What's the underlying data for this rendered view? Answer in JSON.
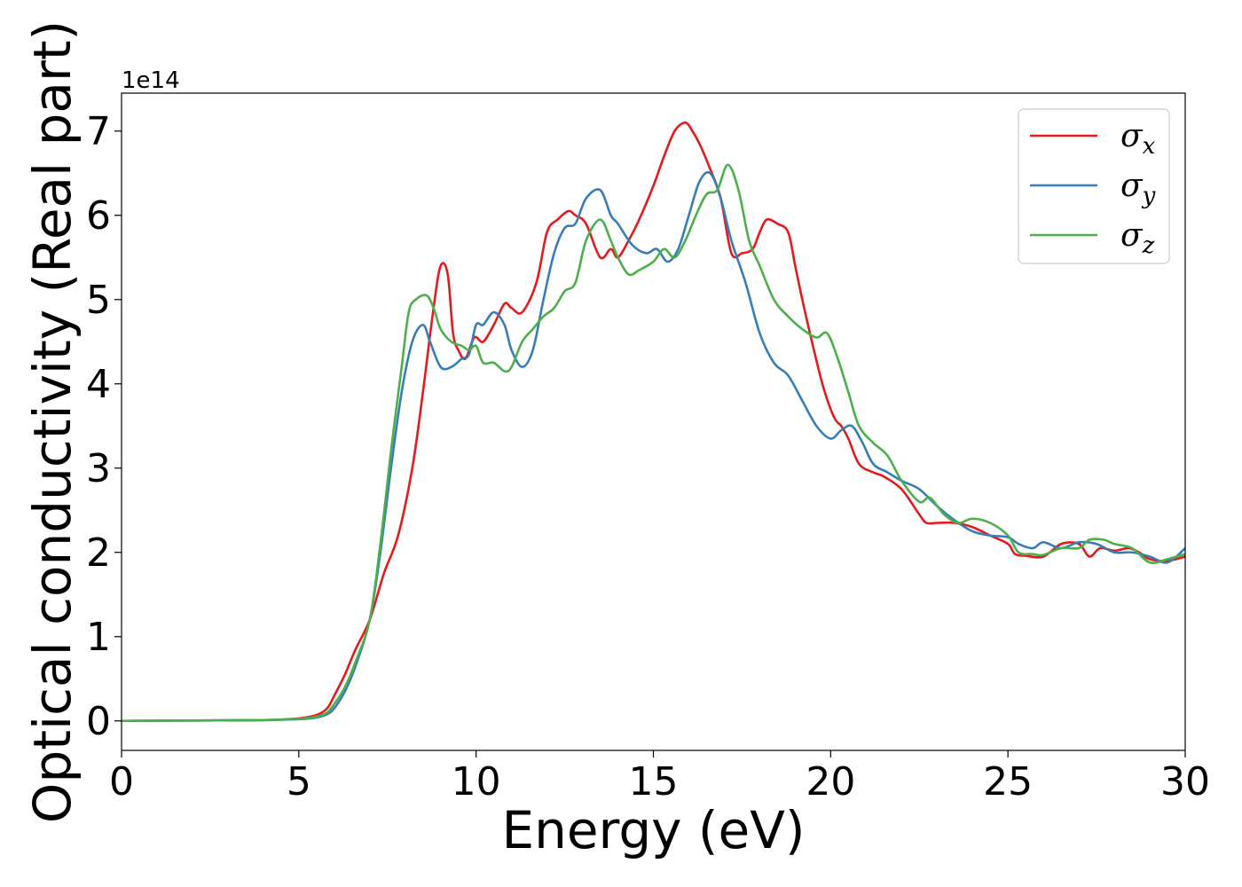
{
  "chart_data": {
    "type": "line",
    "title": "",
    "xlabel": "Energy (eV)",
    "ylabel": "Optical conductivity (Real part)",
    "y_offset_label": "1e14",
    "xlim": [
      0,
      30
    ],
    "ylim": [
      -0.35,
      7.45
    ],
    "xticks": [
      0,
      5,
      10,
      15,
      20,
      25,
      30
    ],
    "yticks": [
      0,
      1,
      2,
      3,
      4,
      5,
      6,
      7
    ],
    "grid": false,
    "legend_position": "top-right",
    "series": [
      {
        "name": "σ",
        "subscript": "x",
        "color": "#e41a1c",
        "x": [
          0,
          2,
          4,
          5,
          5.5,
          5.8,
          6.0,
          6.3,
          6.6,
          7.0,
          7.4,
          7.8,
          8.2,
          8.5,
          8.8,
          9.0,
          9.2,
          9.35,
          9.5,
          9.7,
          9.95,
          10.2,
          10.5,
          10.8,
          11.0,
          11.3,
          11.7,
          12.0,
          12.3,
          12.6,
          12.8,
          13.1,
          13.5,
          13.8,
          14.0,
          14.3,
          14.6,
          15.0,
          15.3,
          15.6,
          15.9,
          16.1,
          16.3,
          16.6,
          16.9,
          17.2,
          17.5,
          17.8,
          18.0,
          18.2,
          18.5,
          18.8,
          19.0,
          19.2,
          19.5,
          19.8,
          20.1,
          20.3,
          20.5,
          20.8,
          21.2,
          21.5,
          22.0,
          22.5,
          22.7,
          23.0,
          23.5,
          24.0,
          24.5,
          25.0,
          25.2,
          25.5,
          26.0,
          26.5,
          27.0,
          27.3,
          27.6,
          28.0,
          28.4,
          28.7,
          29.0,
          29.5,
          30.0
        ],
        "values": [
          0,
          0.005,
          0.01,
          0.03,
          0.07,
          0.15,
          0.3,
          0.55,
          0.85,
          1.2,
          1.75,
          2.2,
          3.0,
          3.9,
          4.9,
          5.4,
          5.3,
          4.6,
          4.4,
          4.3,
          4.55,
          4.5,
          4.7,
          4.95,
          4.9,
          4.85,
          5.2,
          5.8,
          5.95,
          6.05,
          6.0,
          5.9,
          5.5,
          5.6,
          5.5,
          5.7,
          5.95,
          6.35,
          6.7,
          7.0,
          7.1,
          7.0,
          6.85,
          6.55,
          6.2,
          5.55,
          5.55,
          5.6,
          5.8,
          5.95,
          5.9,
          5.8,
          5.4,
          5.0,
          4.45,
          3.95,
          3.6,
          3.5,
          3.35,
          3.05,
          2.95,
          2.9,
          2.75,
          2.45,
          2.35,
          2.35,
          2.35,
          2.3,
          2.2,
          2.1,
          1.98,
          1.96,
          1.95,
          2.1,
          2.1,
          1.95,
          2.05,
          2.02,
          2.05,
          2.0,
          1.92,
          1.9,
          1.95
        ]
      },
      {
        "name": "σ",
        "subscript": "y",
        "color": "#377eb8",
        "x": [
          0,
          2,
          4,
          5,
          5.5,
          5.8,
          6.0,
          6.3,
          6.6,
          7.0,
          7.3,
          7.6,
          7.9,
          8.2,
          8.5,
          8.7,
          9.0,
          9.3,
          9.6,
          9.8,
          10.0,
          10.2,
          10.5,
          10.8,
          11.0,
          11.3,
          11.6,
          11.9,
          12.2,
          12.5,
          12.8,
          13.1,
          13.5,
          13.8,
          14.0,
          14.4,
          14.8,
          15.1,
          15.4,
          15.7,
          16.0,
          16.3,
          16.6,
          16.9,
          17.2,
          17.6,
          18.0,
          18.4,
          18.8,
          19.2,
          19.6,
          20.0,
          20.3,
          20.6,
          20.9,
          21.2,
          21.6,
          22.0,
          22.5,
          23.0,
          23.5,
          24.0,
          24.5,
          25.0,
          25.3,
          25.7,
          26.0,
          26.5,
          27.0,
          27.5,
          28.0,
          28.5,
          29.0,
          29.5,
          30.0
        ],
        "values": [
          0,
          0.005,
          0.01,
          0.02,
          0.04,
          0.08,
          0.15,
          0.35,
          0.65,
          1.2,
          2.0,
          3.0,
          3.9,
          4.5,
          4.7,
          4.5,
          4.2,
          4.2,
          4.3,
          4.35,
          4.7,
          4.7,
          4.85,
          4.7,
          4.4,
          4.2,
          4.4,
          5.0,
          5.55,
          5.85,
          5.9,
          6.2,
          6.3,
          6.0,
          5.9,
          5.65,
          5.55,
          5.6,
          5.45,
          5.6,
          6.0,
          6.4,
          6.5,
          6.2,
          5.7,
          5.2,
          4.6,
          4.25,
          4.1,
          3.8,
          3.5,
          3.35,
          3.45,
          3.5,
          3.3,
          3.05,
          2.95,
          2.85,
          2.75,
          2.55,
          2.38,
          2.25,
          2.2,
          2.18,
          2.1,
          2.05,
          2.12,
          2.05,
          2.12,
          2.1,
          2.0,
          2.0,
          1.95,
          1.88,
          2.05
        ]
      },
      {
        "name": "σ",
        "subscript": "z",
        "color": "#4daf4a",
        "x": [
          0,
          2,
          4,
          5,
          5.5,
          5.8,
          6.0,
          6.3,
          6.6,
          7.0,
          7.3,
          7.6,
          7.9,
          8.1,
          8.3,
          8.6,
          8.8,
          9.0,
          9.3,
          9.6,
          9.8,
          10.0,
          10.2,
          10.5,
          10.8,
          11.0,
          11.3,
          11.6,
          11.9,
          12.2,
          12.5,
          12.8,
          13.1,
          13.5,
          13.8,
          14.0,
          14.3,
          14.6,
          15.0,
          15.3,
          15.6,
          15.9,
          16.2,
          16.5,
          16.8,
          17.1,
          17.4,
          17.7,
          18.0,
          18.4,
          18.8,
          19.2,
          19.6,
          19.9,
          20.2,
          20.5,
          20.8,
          21.2,
          21.6,
          22.0,
          22.5,
          22.8,
          23.2,
          23.6,
          24.0,
          24.5,
          25.0,
          25.3,
          25.7,
          26.0,
          26.5,
          27.0,
          27.3,
          27.7,
          28.0,
          28.5,
          29.0,
          29.5,
          30.0
        ],
        "values": [
          0,
          0.005,
          0.01,
          0.025,
          0.05,
          0.1,
          0.2,
          0.4,
          0.7,
          1.2,
          2.1,
          3.2,
          4.2,
          4.85,
          5.0,
          5.05,
          4.9,
          4.65,
          4.5,
          4.45,
          4.4,
          4.45,
          4.25,
          4.25,
          4.15,
          4.2,
          4.5,
          4.65,
          4.8,
          4.9,
          5.1,
          5.2,
          5.7,
          5.95,
          5.7,
          5.5,
          5.3,
          5.35,
          5.45,
          5.6,
          5.5,
          5.7,
          6.0,
          6.25,
          6.3,
          6.6,
          6.3,
          5.7,
          5.4,
          5.0,
          4.8,
          4.65,
          4.55,
          4.6,
          4.3,
          3.9,
          3.5,
          3.3,
          3.15,
          2.85,
          2.6,
          2.65,
          2.45,
          2.35,
          2.4,
          2.35,
          2.2,
          2.0,
          1.98,
          1.97,
          2.05,
          2.05,
          2.15,
          2.15,
          2.1,
          2.05,
          1.88,
          1.92,
          1.98
        ]
      }
    ]
  }
}
